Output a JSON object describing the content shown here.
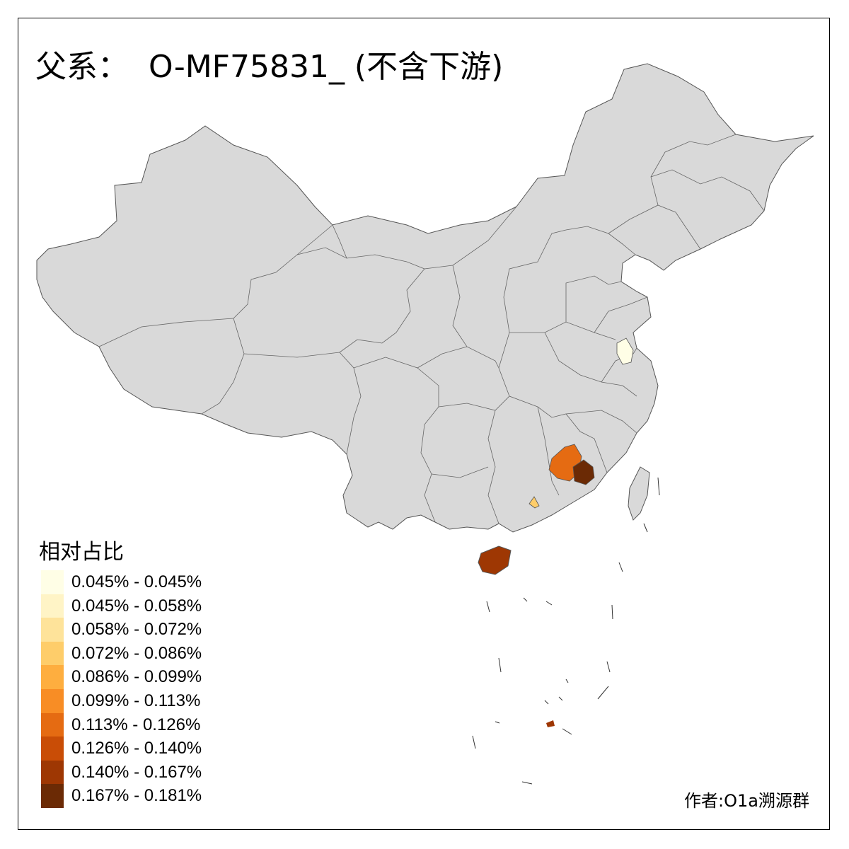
{
  "title": "父系：  O-MF75831_ (不含下游)",
  "legend": {
    "title": "相对占比",
    "items": [
      {
        "label": "0.045% - 0.045%",
        "color": "#FFFEE6"
      },
      {
        "label": "0.045% - 0.058%",
        "color": "#FFF4C6"
      },
      {
        "label": "0.058% - 0.072%",
        "color": "#FEE39A"
      },
      {
        "label": "0.072% - 0.086%",
        "color": "#FECD6A"
      },
      {
        "label": "0.086% - 0.099%",
        "color": "#FEAE3F"
      },
      {
        "label": "0.099% - 0.113%",
        "color": "#F88D25"
      },
      {
        "label": "0.113% - 0.126%",
        "color": "#E56B12"
      },
      {
        "label": "0.126% - 0.140%",
        "color": "#C94D06"
      },
      {
        "label": "0.140% - 0.167%",
        "color": "#9E3703"
      },
      {
        "label": "0.167% - 0.181%",
        "color": "#6B2A05"
      }
    ]
  },
  "author": "作者:O1a溯源群",
  "colors": {
    "base": "#D9D9D9",
    "border": "#555555"
  }
}
